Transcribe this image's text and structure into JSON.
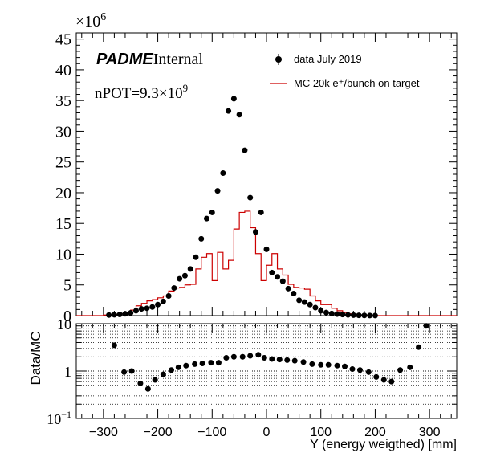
{
  "chart_data": [
    {
      "type": "histogram",
      "panel": "top",
      "xlim": [
        -350,
        350
      ],
      "ylim": [
        0,
        46000000
      ],
      "y_multiplier_label": "×10",
      "y_multiplier_exp": "6",
      "y_tick_values": [
        0,
        5,
        10,
        15,
        20,
        25,
        30,
        35,
        40,
        45
      ],
      "y_tick_labels": [
        "0",
        "5",
        "10",
        "15",
        "20",
        "25",
        "30",
        "35",
        "40",
        "45"
      ],
      "grid": false,
      "legend_position": "top-right",
      "annotations": {
        "logo_bold": "PADME",
        "logo_regular": "Internal",
        "npot_prefix": "nPOT=9.3×10",
        "npot_exp": "9"
      },
      "series": [
        {
          "name": "data July 2019",
          "style": "points",
          "color": "#000000",
          "x": [
            -290,
            -280,
            -270,
            -260,
            -250,
            -240,
            -230,
            -220,
            -210,
            -200,
            -190,
            -180,
            -170,
            -160,
            -150,
            -140,
            -130,
            -120,
            -110,
            -100,
            -90,
            -80,
            -70,
            -60,
            -50,
            -40,
            -30,
            -20,
            -10,
            0,
            10,
            20,
            30,
            40,
            50,
            60,
            70,
            80,
            90,
            100,
            110,
            120,
            130,
            140,
            150,
            160,
            170,
            180,
            190,
            200,
            210,
            220,
            230,
            240,
            250,
            260,
            270,
            280,
            290,
            300
          ],
          "y": [
            0.1,
            0.15,
            0.2,
            0.3,
            0.45,
            0.8,
            1.1,
            1.2,
            1.4,
            1.8,
            2.3,
            3.2,
            4.5,
            6.0,
            6.5,
            7.6,
            9.5,
            12.5,
            15.8,
            16.8,
            20.3,
            23.2,
            33.3,
            35.3,
            32.7,
            26.9,
            19.2,
            13.6,
            16.8,
            10.8,
            7.0,
            6.3,
            5.6,
            4.4,
            3.6,
            2.5,
            2.2,
            1.8,
            1.3,
            0.8,
            0.5,
            0.35,
            0.25,
            0.18,
            0.12,
            0.08,
            0.05,
            0.03,
            0.02,
            0.01,
            0,
            0,
            0,
            0,
            0,
            0,
            0,
            0,
            0,
            0
          ],
          "y_unit_scale": 1000000
        },
        {
          "name": "MC 20k e⁺/bunch on target",
          "style": "step",
          "color": "#cc0000",
          "bin_edges": [
            -350,
            -300,
            -290,
            -280,
            -270,
            -260,
            -250,
            -240,
            -230,
            -220,
            -210,
            -200,
            -190,
            -180,
            -170,
            -160,
            -150,
            -140,
            -130,
            -120,
            -110,
            -100,
            -90,
            -80,
            -70,
            -60,
            -50,
            -40,
            -30,
            -20,
            -10,
            0,
            10,
            20,
            30,
            40,
            50,
            60,
            70,
            80,
            90,
            100,
            110,
            120,
            130,
            140,
            150,
            160,
            170,
            180,
            190,
            200,
            210,
            220,
            230,
            240,
            250,
            260,
            270,
            280,
            290,
            300,
            350
          ],
          "values": [
            0,
            0.1,
            0.15,
            0.2,
            0.3,
            0.5,
            0.9,
            1.6,
            2.0,
            2.4,
            2.6,
            2.9,
            3.2,
            4.0,
            4.5,
            4.6,
            5.0,
            5.1,
            7.6,
            9.5,
            10.1,
            5.7,
            10.3,
            7.6,
            9.0,
            14.1,
            16.8,
            17.0,
            14.3,
            10.1,
            5.7,
            8.2,
            10.1,
            7.6,
            6.6,
            5.1,
            4.6,
            4.5,
            4.3,
            3.2,
            2.4,
            1.8,
            1.8,
            1.2,
            0.8,
            0.5,
            0.3,
            0.2,
            0.1,
            0.05,
            0.02,
            0,
            0,
            0,
            0,
            0,
            0,
            0,
            0,
            0,
            0,
            0
          ],
          "y_unit_scale": 1000000
        }
      ]
    },
    {
      "type": "scatter",
      "panel": "bottom",
      "ylabel": "Data/MC",
      "xlabel": "Y (energy weigthed) [mm]",
      "xlim": [
        -350,
        350
      ],
      "ylim": [
        0.1,
        10
      ],
      "yscale": "log",
      "x_tick_values": [
        -300,
        -200,
        -100,
        0,
        100,
        200,
        300
      ],
      "x_tick_labels": [
        "−300",
        "−200",
        "−100",
        "0",
        "100",
        "200",
        "300"
      ],
      "y_tick_values": [
        0.1,
        1,
        10
      ],
      "y_tick_base": "10",
      "y_tick_exp_0": "−1",
      "y_tick_label_1": "1",
      "y_tick_label_10": "10",
      "grid": "horizontal-dotted",
      "x": [
        -280,
        -262,
        -248,
        -232,
        -218,
        -205,
        -190,
        -175,
        -162,
        -148,
        -132,
        -118,
        -102,
        -88,
        -74,
        -60,
        -44,
        -30,
        -15,
        -4,
        10,
        24,
        38,
        52,
        68,
        84,
        100,
        114,
        130,
        144,
        158,
        172,
        188,
        202,
        216,
        230,
        246,
        264,
        280,
        294
      ],
      "y": [
        3.5,
        0.95,
        1.0,
        0.55,
        0.42,
        0.65,
        0.85,
        1.05,
        1.2,
        1.3,
        1.4,
        1.45,
        1.5,
        1.5,
        1.9,
        2.0,
        2.0,
        2.1,
        2.2,
        1.9,
        1.8,
        1.75,
        1.7,
        1.65,
        1.55,
        1.4,
        1.35,
        1.35,
        1.3,
        1.25,
        1.1,
        1.05,
        0.95,
        0.75,
        0.65,
        0.6,
        1.05,
        1.2,
        3.2,
        9.0
      ]
    }
  ],
  "colors": {
    "data": "#000000",
    "mc": "#cc0000",
    "axis": "#000000"
  }
}
